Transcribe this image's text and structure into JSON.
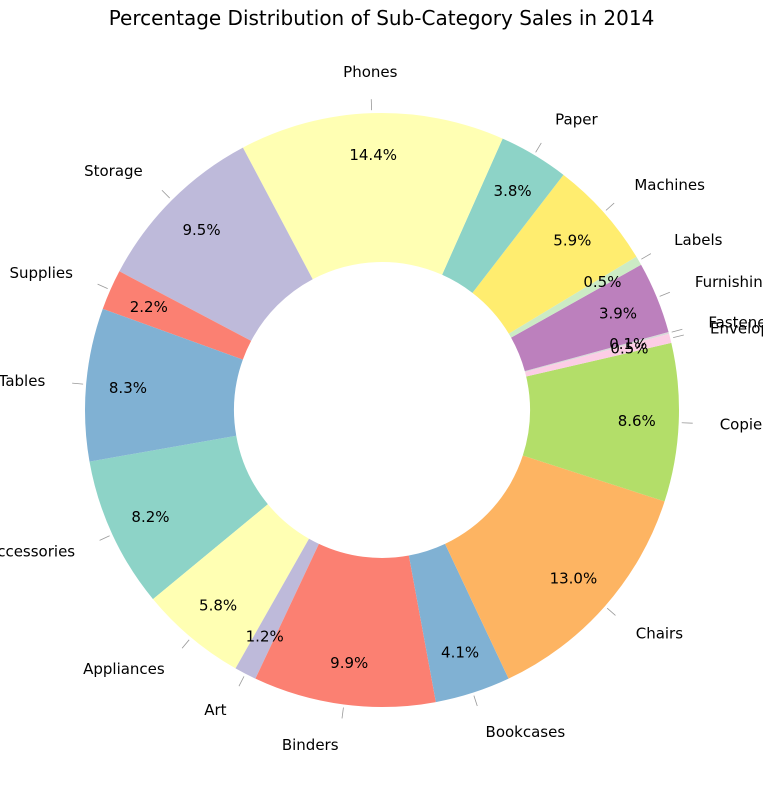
{
  "chart_data": {
    "type": "pie",
    "title": "Percentage Distribution of Sub-Category Sales in 2014",
    "donut": true,
    "legend": "none",
    "categories": [
      "Accessories",
      "Appliances",
      "Art",
      "Binders",
      "Bookcases",
      "Chairs",
      "Copiers",
      "Envelopes",
      "Fasteners",
      "Furnishings",
      "Labels",
      "Machines",
      "Paper",
      "Phones",
      "Storage",
      "Supplies",
      "Tables"
    ],
    "values": [
      8.2,
      5.8,
      1.2,
      9.9,
      4.1,
      13.0,
      8.6,
      0.5,
      0.1,
      3.9,
      0.5,
      5.9,
      3.8,
      14.4,
      9.5,
      2.2,
      8.3
    ],
    "value_labels": [
      "8.2%",
      "5.8%",
      "1.2%",
      "9.9%",
      "4.1%",
      "13.0%",
      "8.6%",
      "0.5%",
      "0.1%",
      "3.9%",
      "0.5%",
      "5.9%",
      "3.8%",
      "14.4%",
      "9.5%",
      "2.2%",
      "8.3%"
    ],
    "colors": [
      "#8dd3c7",
      "#ffffb3",
      "#bebada",
      "#fb8072",
      "#80b1d3",
      "#fdb462",
      "#b3de69",
      "#fccde5",
      "#d9d9d9",
      "#bc80bd",
      "#ccebc5",
      "#ffed6f",
      "#8dd3c7",
      "#ffffb3",
      "#bebada",
      "#fb8072",
      "#80b1d3"
    ]
  }
}
